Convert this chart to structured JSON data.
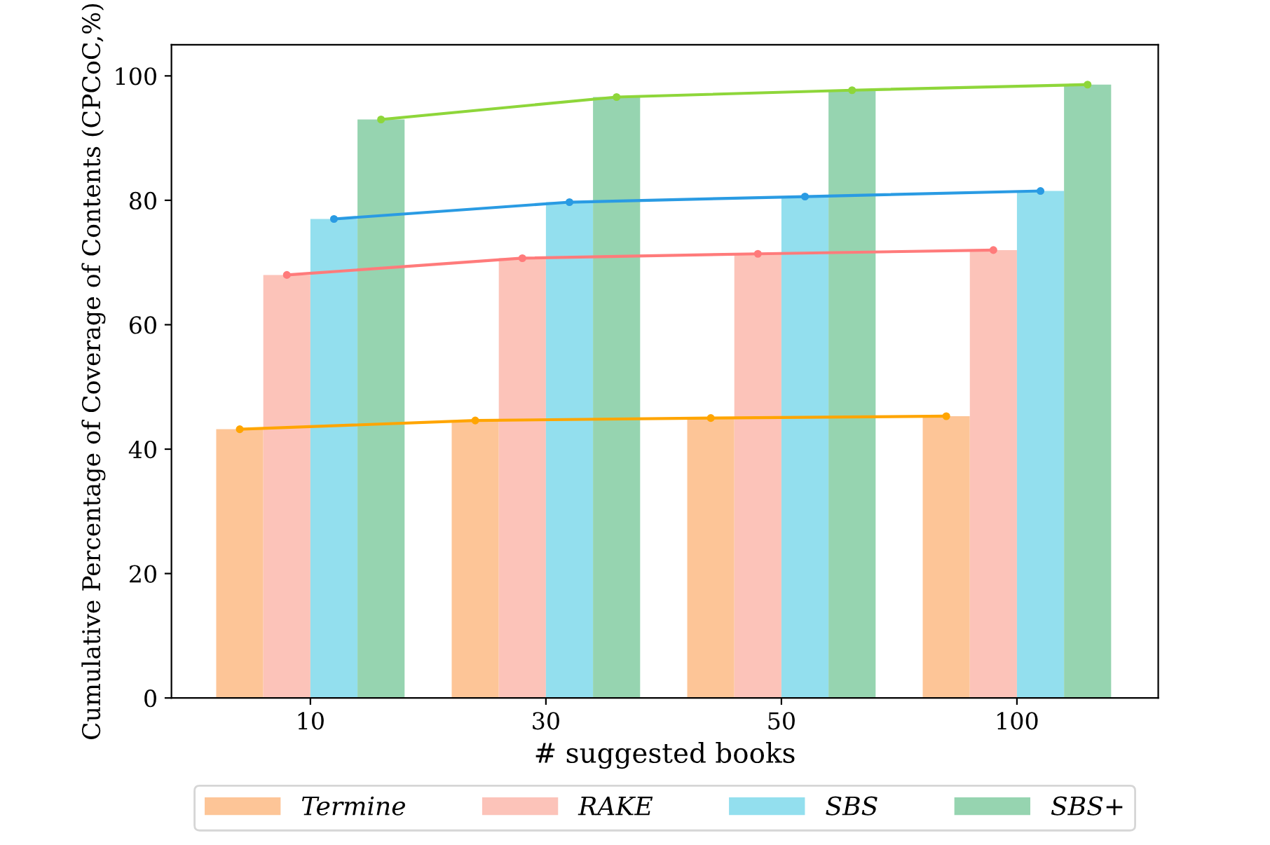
{
  "chart_data": {
    "type": "bar",
    "xlabel": "# suggested books",
    "ylabel": "Cumulative Percentage of Coverage of Contents (CPCoC,%)",
    "categories": [
      "10",
      "30",
      "50",
      "100"
    ],
    "series": [
      {
        "name": "Termine",
        "color": "#fdc597",
        "values": [
          43.2,
          44.6,
          45.0,
          45.3
        ]
      },
      {
        "name": "RAKE",
        "color": "#fcc3b9",
        "values": [
          68.0,
          70.7,
          71.4,
          72.0
        ]
      },
      {
        "name": "SBS",
        "color": "#93dfee",
        "values": [
          77.0,
          79.7,
          80.6,
          81.5
        ]
      },
      {
        "name": "SBS+",
        "color": "#96d4b0",
        "values": [
          93.0,
          96.6,
          97.7,
          98.6
        ]
      },
      {
        "type": "line",
        "color": "#ffa500",
        "values": [
          43.2,
          44.6,
          45.0,
          45.3
        ]
      },
      {
        "type": "line",
        "color": "#ff7b7b",
        "values": [
          68.0,
          70.7,
          71.4,
          72.0
        ]
      },
      {
        "type": "line",
        "color": "#2a9be3",
        "values": [
          77.0,
          79.7,
          80.6,
          81.5
        ]
      },
      {
        "type": "line",
        "color": "#8ed63a",
        "values": [
          93.0,
          96.6,
          97.7,
          98.6
        ]
      }
    ],
    "ylim": [
      0,
      105
    ],
    "yticks": [
      0,
      20,
      40,
      60,
      80,
      100
    ],
    "grid": false,
    "legend": "bottom",
    "marker": "circle"
  }
}
